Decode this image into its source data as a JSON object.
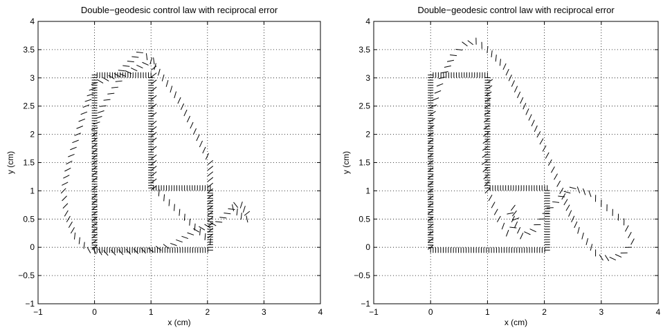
{
  "chart_data": [
    {
      "type": "scatter",
      "marker": "short oriented line segments",
      "title": "Double−geodesic control law with reciprocal error",
      "xlabel": "x (cm)",
      "ylabel": "y (cm)",
      "xlim": [
        -1,
        4
      ],
      "ylim": [
        -1,
        4
      ],
      "xticks": [
        "−1",
        "0",
        "1",
        "2",
        "3",
        "4"
      ],
      "yticks": [
        "−1",
        "−0.5",
        "0",
        "0.5",
        "1",
        "1.5",
        "2",
        "2.5",
        "3",
        "3.5",
        "4"
      ],
      "grid": true,
      "reference_path": {
        "x": [
          2.05,
          2.05,
          1.0,
          1.0,
          0.0,
          0.0,
          2.05,
          2.05
        ],
        "y": [
          0.0,
          1.05,
          1.05,
          3.05,
          3.05,
          -0.05,
          -0.05,
          0.0
        ]
      },
      "trajectory": {
        "x": [
          0.0,
          0.0,
          0.0,
          0.0,
          0.0,
          0.0,
          0.0,
          0.0,
          0.15,
          0.5,
          1.0,
          1.5,
          2.05,
          2.05,
          2.05,
          2.05,
          2.05,
          2.05,
          2.05,
          1.05,
          1.05,
          1.05,
          1.05,
          1.05,
          1.05,
          1.05,
          1.05,
          1.05,
          0.8,
          0.4,
          0.0,
          -0.15,
          -0.3,
          -0.45,
          -0.55,
          -0.5,
          -0.35,
          -0.1,
          0.2,
          0.6,
          1.0,
          1.4,
          1.8,
          2.2,
          2.35,
          2.5,
          2.6,
          2.7,
          2.7,
          2.6,
          2.45,
          2.35
        ],
        "y": [
          0.0,
          0.3,
          0.6,
          0.9,
          1.2,
          1.5,
          1.8,
          2.1,
          2.5,
          3.05,
          3.3,
          2.6,
          1.5,
          1.3,
          1.0,
          0.8,
          0.5,
          0.3,
          0.1,
          1.05,
          1.3,
          1.6,
          1.9,
          2.2,
          2.5,
          2.8,
          3.05,
          3.3,
          3.45,
          3.05,
          2.9,
          2.5,
          2.0,
          1.5,
          1.0,
          0.6,
          0.2,
          -0.05,
          -0.1,
          -0.08,
          -0.05,
          0.05,
          0.3,
          0.45,
          0.6,
          0.75,
          0.75,
          0.6,
          0.5,
          0.55,
          0.7,
          0.75
        ]
      }
    },
    {
      "type": "scatter",
      "marker": "short oriented line segments",
      "title": "Double−geodesic control law with reciprocal error",
      "xlabel": "x (cm)",
      "ylabel": "y (cm)",
      "xlim": [
        -1,
        4
      ],
      "ylim": [
        -1,
        4
      ],
      "xticks": [
        "−1",
        "0",
        "1",
        "2",
        "3",
        "4"
      ],
      "yticks": [
        "−1",
        "−0.5",
        "0",
        "0.5",
        "1",
        "1.5",
        "2",
        "2.5",
        "3",
        "3.5",
        "4"
      ],
      "grid": true,
      "reference_path": {
        "x": [
          2.05,
          2.05,
          1.0,
          1.0,
          0.0,
          0.0,
          2.05,
          2.05
        ],
        "y": [
          0.0,
          1.05,
          1.05,
          3.05,
          3.05,
          -0.05,
          -0.05,
          0.0
        ]
      },
      "trajectory": {
        "x": [
          0.0,
          0.0,
          0.0,
          0.0,
          0.0,
          0.05,
          0.2,
          0.4,
          0.6,
          0.8,
          1.0,
          1.3,
          1.6,
          1.9,
          2.1,
          2.3,
          2.45,
          2.6,
          2.75,
          2.9,
          3.0,
          3.2,
          3.4,
          3.55,
          3.4,
          3.1,
          2.8,
          2.5,
          2.3,
          2.1,
          1.95,
          1.8,
          1.6,
          1.45,
          1.4,
          1.45,
          1.5,
          1.45,
          1.35,
          1.2,
          1.0,
          0.95,
          1.0,
          1.05
        ],
        "y": [
          0.0,
          0.5,
          1.0,
          1.5,
          2.0,
          2.5,
          3.0,
          3.4,
          3.6,
          3.65,
          3.5,
          3.2,
          2.6,
          2.0,
          1.5,
          1.0,
          0.6,
          0.3,
          0.1,
          -0.1,
          -0.18,
          -0.2,
          -0.1,
          0.1,
          0.45,
          0.7,
          0.95,
          1.05,
          0.9,
          0.7,
          0.5,
          0.3,
          0.2,
          0.5,
          0.6,
          0.7,
          0.5,
          0.35,
          0.25,
          0.5,
          1.0,
          1.5,
          2.5,
          3.05
        ]
      }
    }
  ]
}
